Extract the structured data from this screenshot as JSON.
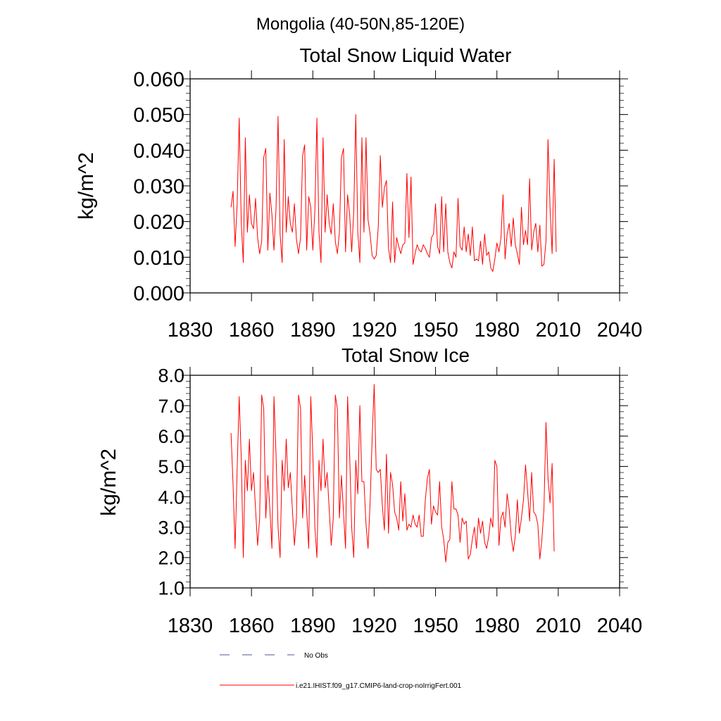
{
  "suptitle": "Mongolia (40-50N,85-120E)",
  "chart_data": [
    {
      "type": "line",
      "title": "Total Snow Liquid Water",
      "xlabel": "",
      "ylabel": "kg/m^2",
      "xlim": [
        1830,
        2040
      ],
      "ylim": [
        0.0,
        0.06
      ],
      "xticks": [
        1830,
        1860,
        1890,
        1920,
        1950,
        1980,
        2010,
        2040
      ],
      "xtick_labels": [
        "1830",
        "1860",
        "1890",
        "1920",
        "1950",
        "1980",
        "2010",
        "2040"
      ],
      "yticks": [
        0.0,
        0.01,
        0.02,
        0.03,
        0.04,
        0.05,
        0.06
      ],
      "ytick_labels": [
        "0.000",
        "0.010",
        "0.020",
        "0.030",
        "0.040",
        "0.050",
        "0.060"
      ],
      "grid": false,
      "series": [
        {
          "name": "i.e21.IHIST.f09_g17.CMIP6-land-crop-noIrrigFert.001",
          "color": "#ff0000",
          "x_start": 1850,
          "x_step": 1,
          "values": [
            0.024,
            0.0285,
            0.013,
            0.025,
            0.049,
            0.02,
            0.0085,
            0.0435,
            0.017,
            0.0275,
            0.0195,
            0.018,
            0.0265,
            0.0155,
            0.011,
            0.0145,
            0.038,
            0.0405,
            0.012,
            0.028,
            0.022,
            0.012,
            0.0235,
            0.0495,
            0.0165,
            0.0085,
            0.043,
            0.017,
            0.027,
            0.0195,
            0.017,
            0.025,
            0.015,
            0.011,
            0.0155,
            0.0385,
            0.0415,
            0.012,
            0.027,
            0.024,
            0.012,
            0.023,
            0.049,
            0.017,
            0.0085,
            0.0435,
            0.017,
            0.0275,
            0.0195,
            0.0165,
            0.025,
            0.0145,
            0.011,
            0.017,
            0.038,
            0.0405,
            0.0115,
            0.0275,
            0.022,
            0.0115,
            0.0225,
            0.05,
            0.017,
            0.0085,
            0.0435,
            0.017,
            0.0435,
            0.0205,
            0.0165,
            0.0105,
            0.0095,
            0.0105,
            0.0185,
            0.0385,
            0.024,
            0.0295,
            0.0315,
            0.0125,
            0.0085,
            0.0255,
            0.0085,
            0.0155,
            0.013,
            0.011,
            0.0135,
            0.014,
            0.0335,
            0.0155,
            0.0325,
            0.008,
            0.011,
            0.0135,
            0.012,
            0.0115,
            0.0135,
            0.0125,
            0.011,
            0.01,
            0.0155,
            0.0165,
            0.025,
            0.013,
            0.011,
            0.027,
            0.0115,
            0.025,
            0.0115,
            0.0085,
            0.007,
            0.0115,
            0.01,
            0.0265,
            0.013,
            0.012,
            0.0185,
            0.0115,
            0.0165,
            0.0105,
            0.0185,
            0.009,
            0.0095,
            0.009,
            0.0145,
            0.008,
            0.0165,
            0.0105,
            0.0115,
            0.007,
            0.006,
            0.0095,
            0.014,
            0.0115,
            0.0155,
            0.0275,
            0.0095,
            0.0165,
            0.0195,
            0.013,
            0.021,
            0.0135,
            0.011,
            0.008,
            0.024,
            0.0135,
            0.0175,
            0.0135,
            0.032,
            0.012,
            0.017,
            0.0195,
            0.0115,
            0.019,
            0.0075,
            0.008,
            0.0145,
            0.043,
            0.0235,
            0.011,
            0.0375,
            0.0115
          ]
        }
      ]
    },
    {
      "type": "line",
      "title": "Total Snow Ice",
      "xlabel": "",
      "ylabel": "kg/m^2",
      "xlim": [
        1830,
        2040
      ],
      "ylim": [
        1.0,
        8.0
      ],
      "xticks": [
        1830,
        1860,
        1890,
        1920,
        1950,
        1980,
        2010,
        2040
      ],
      "xtick_labels": [
        "1830",
        "1860",
        "1890",
        "1920",
        "1950",
        "1980",
        "2010",
        "2040"
      ],
      "yticks": [
        1.0,
        2.0,
        3.0,
        4.0,
        5.0,
        6.0,
        7.0,
        8.0
      ],
      "ytick_labels": [
        "1.0",
        "2.0",
        "3.0",
        "4.0",
        "5.0",
        "6.0",
        "7.0",
        "8.0"
      ],
      "grid": false,
      "series": [
        {
          "name": "i.e21.IHIST.f09_g17.CMIP6-land-crop-noIrrigFert.001",
          "color": "#ff0000",
          "x_start": 1850,
          "x_step": 1,
          "values": [
            6.1,
            4.4,
            2.3,
            4.9,
            7.3,
            5.3,
            2.0,
            5.2,
            4.2,
            5.9,
            4.2,
            4.8,
            3.6,
            2.4,
            3.3,
            7.35,
            6.9,
            3.3,
            4.7,
            3.6,
            2.3,
            7.3,
            5.4,
            3.0,
            2.0,
            5.2,
            4.2,
            5.9,
            4.3,
            4.8,
            3.6,
            2.4,
            3.3,
            7.35,
            6.9,
            3.3,
            4.7,
            3.5,
            2.3,
            7.3,
            5.4,
            3.0,
            2.0,
            5.2,
            4.2,
            5.9,
            4.3,
            4.8,
            3.6,
            2.4,
            3.3,
            7.35,
            6.9,
            3.3,
            4.7,
            3.5,
            2.3,
            7.3,
            5.4,
            3.0,
            2.0,
            5.2,
            4.1,
            7.0,
            4.5,
            4.5,
            3.1,
            2.3,
            3.8,
            5.9,
            7.7,
            4.9,
            4.8,
            4.9,
            3.7,
            2.9,
            5.4,
            2.8,
            4.8,
            4.4,
            3.5,
            3.3,
            2.9,
            4.5,
            3.2,
            4.1,
            2.9,
            3.1,
            3.0,
            3.4,
            3.1,
            3.0,
            3.4,
            2.7,
            2.7,
            3.9,
            4.6,
            4.9,
            3.1,
            3.7,
            3.5,
            3.4,
            4.5,
            3.0,
            2.6,
            1.85,
            2.5,
            2.6,
            4.5,
            3.6,
            3.6,
            3.4,
            2.5,
            3.3,
            3.1,
            3.2,
            1.95,
            2.1,
            2.6,
            3.0,
            2.3,
            3.3,
            2.8,
            3.2,
            2.5,
            2.3,
            2.7,
            3.3,
            3.0,
            5.2,
            5.0,
            2.4,
            3.3,
            3.5,
            3.0,
            4.1,
            3.6,
            2.7,
            2.2,
            2.7,
            3.9,
            2.8,
            3.3,
            3.9,
            5.05,
            4.2,
            3.2,
            4.8,
            3.5,
            3.4,
            3.1,
            1.95,
            2.6,
            3.6,
            6.45,
            4.6,
            3.8,
            5.1,
            2.2
          ]
        }
      ]
    }
  ],
  "legend": {
    "placement": "bottom",
    "items": [
      {
        "label": "No Obs",
        "color": "#4a5a9a",
        "style": "dashed"
      },
      {
        "label": "i.e21.IHIST.f09_g17.CMIP6-land-crop-noIrrigFert.001",
        "color": "#ff0000",
        "style": "solid"
      }
    ]
  }
}
